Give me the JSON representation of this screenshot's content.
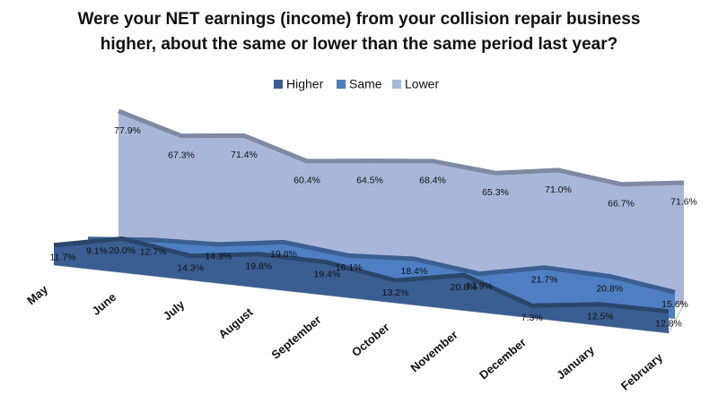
{
  "chart_data": {
    "type": "area3d",
    "title": [
      "Were your NET earnings (income) from your collision repair business",
      "higher, about the same or lower than the same period last year?"
    ],
    "categories": [
      "May",
      "June",
      "July",
      "August",
      "September",
      "October",
      "November",
      "December",
      "January",
      "February"
    ],
    "series": [
      {
        "name": "Higher",
        "color": "#3a5e91",
        "values": [
          11.7,
          20.0,
          14.3,
          19.8,
          19.4,
          13.2,
          20.8,
          7.3,
          12.5,
          12.8
        ],
        "value_labels": [
          "11.7%",
          "20.0%",
          "14.3%",
          "19.8%",
          "19.4%",
          "13.2%",
          "20.8%",
          "7.3%",
          "12.5%",
          "12.8%"
        ]
      },
      {
        "name": "Same",
        "color": "#4f7fc3",
        "values": [
          9.1,
          12.7,
          14.3,
          19.8,
          16.1,
          18.4,
          13.9,
          21.7,
          20.8,
          15.6
        ],
        "value_labels": [
          "9.1%",
          "12.7%",
          "14.3%",
          "19.8%",
          "16.1%",
          "18.4%",
          "13.9%",
          "21.7%",
          "20.8%",
          "15.6%"
        ]
      },
      {
        "name": "Lower",
        "color": "#a8b7d9",
        "values": [
          77.9,
          67.3,
          71.4,
          60.4,
          64.5,
          68.4,
          65.3,
          71.0,
          66.7,
          71.6
        ],
        "value_labels": [
          "77.9%",
          "67.3%",
          "71.4%",
          "60.4%",
          "64.5%",
          "68.4%",
          "65.3%",
          "71.0%",
          "66.7%",
          "71.6%"
        ]
      }
    ],
    "legend": "top"
  }
}
